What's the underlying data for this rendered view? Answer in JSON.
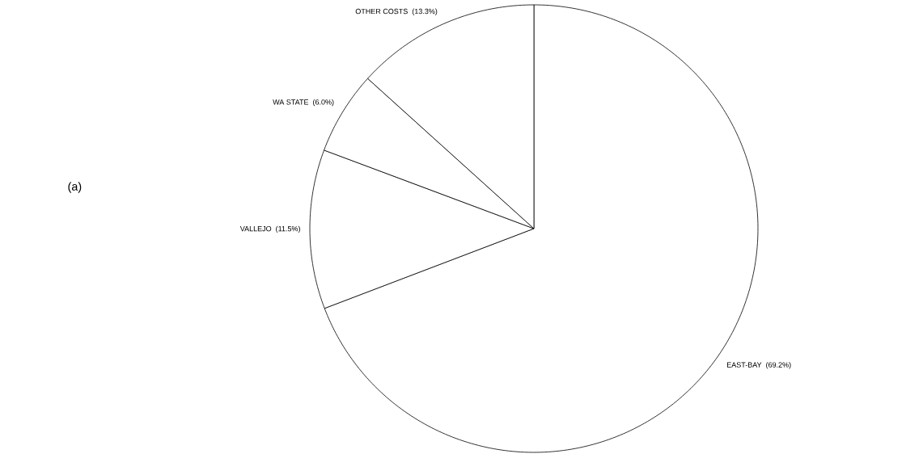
{
  "chart_data": {
    "type": "pie",
    "categories": [
      "EAST-BAY",
      "VALLEJO",
      "WA STATE",
      "OTHER COSTS"
    ],
    "values": [
      69.2,
      11.5,
      6.0,
      13.3
    ],
    "value_labels": [
      "(69.2%)",
      "(11.5%)",
      "(6.0%)",
      "(13.3%)"
    ],
    "colors": [
      "#ffffff",
      "#ffffff",
      "#ffffff",
      "#ffffff"
    ],
    "annotations": [
      "(a)"
    ]
  }
}
